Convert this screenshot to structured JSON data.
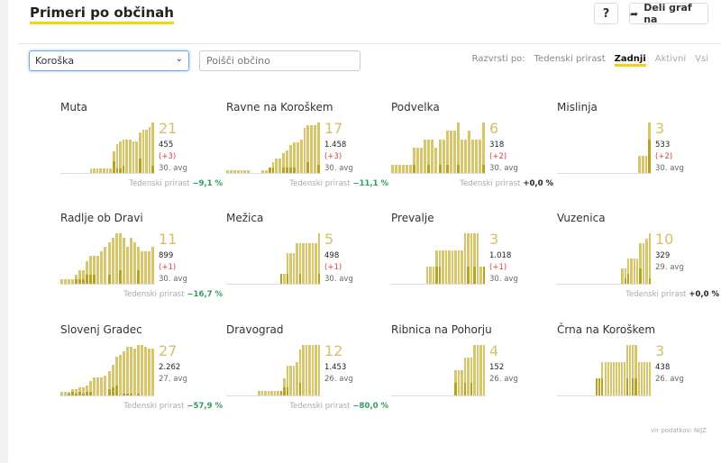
{
  "header": {
    "title": "Primeri po občinah",
    "help_label": "?",
    "share_label": "Deli graf na"
  },
  "filters": {
    "region": "Koroška",
    "search_placeholder": "Poišči občino",
    "sort_label": "Razvrsti po:",
    "sort_options": [
      "Tedenski prirast",
      "Zadnji",
      "Aktivni",
      "Vsi"
    ],
    "sort_active": "Zadnji"
  },
  "growth_label": "Tedenski prirast",
  "colors": {
    "bar": "#d8c66a",
    "bar_dark": "#b9a21f",
    "negative_growth": "#2e9e5b",
    "accent": "#f5d313"
  },
  "cards": [
    {
      "name": "Muta",
      "last": "21",
      "total": "455",
      "change": "(+3)",
      "avg": "30. avg",
      "growth": "−9,1 %",
      "gcolor": "#2e9e5b",
      "bars": [
        0,
        0,
        0,
        0,
        0,
        0,
        0,
        0,
        0,
        2,
        2,
        2,
        2,
        2,
        2,
        2,
        9,
        12,
        13,
        14,
        14,
        14,
        13,
        13,
        17,
        18,
        18,
        19,
        21
      ],
      "dark": [
        0,
        0,
        0,
        0,
        0,
        0,
        0,
        0,
        0,
        0,
        0,
        0,
        0,
        0,
        0,
        0,
        5,
        2,
        2,
        3,
        0,
        0,
        0,
        0,
        6,
        0,
        0,
        0,
        3
      ]
    },
    {
      "name": "Ravne na Koroškem",
      "last": "17",
      "total": "1.458",
      "change": "(+3)",
      "avg": "30. avg",
      "growth": "−11,1 %",
      "gcolor": "#2e9e5b",
      "bars": [
        1,
        1,
        1,
        1,
        1,
        1,
        1,
        0,
        0,
        0,
        1,
        1,
        2,
        4,
        5,
        5,
        7,
        8,
        10,
        11,
        11,
        12,
        16,
        17,
        17,
        17,
        18
      ],
      "dark": [
        0,
        0,
        0,
        0,
        0,
        0,
        0,
        0,
        0,
        0,
        0,
        0,
        2,
        2,
        0,
        0,
        2,
        2,
        2,
        2,
        0,
        0,
        0,
        4,
        0,
        0,
        3
      ]
    },
    {
      "name": "Podvelka",
      "last": "6",
      "total": "318",
      "change": "(+2)",
      "avg": "30. avg",
      "growth": "+0,0 %",
      "gcolor": "#222",
      "bars": [
        1,
        1,
        1,
        1,
        1,
        1,
        3,
        3,
        3,
        4,
        4,
        4,
        3,
        4,
        4,
        5,
        5,
        5,
        6,
        4,
        4,
        5,
        4,
        4,
        4,
        6
      ],
      "dark": [
        0,
        0,
        0,
        0,
        0,
        0,
        1,
        0,
        0,
        0,
        1,
        0,
        0,
        1,
        0,
        1,
        0,
        0,
        1,
        0,
        0,
        0,
        0,
        0,
        0,
        1
      ]
    },
    {
      "name": "Mislinja",
      "last": "3",
      "total": "533",
      "change": "(+2)",
      "avg": "30. avg",
      "growth": "",
      "gcolor": "#222",
      "bars": [
        0,
        0,
        0,
        0,
        0,
        0,
        0,
        0,
        0,
        0,
        0,
        0,
        0,
        0,
        0,
        0,
        0,
        0,
        0,
        0,
        0,
        0,
        0,
        0,
        1,
        1,
        1,
        3
      ],
      "dark": [
        0,
        0,
        0,
        0,
        0,
        0,
        0,
        0,
        0,
        0,
        0,
        0,
        0,
        0,
        0,
        0,
        0,
        0,
        0,
        0,
        0,
        0,
        0,
        0,
        0,
        0,
        0,
        2
      ]
    },
    {
      "name": "Radlje ob Dravi",
      "last": "11",
      "total": "899",
      "change": "(+1)",
      "avg": "30. avg",
      "growth": "−16,7 %",
      "gcolor": "#2e9e5b",
      "bars": [
        1,
        1,
        1,
        1,
        2,
        3,
        3,
        5,
        6,
        6,
        6,
        7,
        8,
        9,
        10,
        11,
        11,
        10,
        8,
        10,
        9,
        8,
        7,
        7,
        7,
        8
      ],
      "dark": [
        0,
        0,
        0,
        0,
        1,
        1,
        1,
        2,
        2,
        2,
        0,
        0,
        0,
        2,
        0,
        0,
        3,
        0,
        0,
        0,
        0,
        3,
        0,
        0,
        0,
        0
      ]
    },
    {
      "name": "Mežica",
      "last": "5",
      "total": "498",
      "change": "(+1)",
      "avg": "30. avg",
      "growth": "",
      "gcolor": "#222",
      "bars": [
        0,
        0,
        0,
        0,
        0,
        0,
        0,
        0,
        0,
        0,
        0,
        0,
        0,
        0,
        0,
        0,
        0,
        1,
        1,
        3,
        3,
        3,
        4,
        4,
        4,
        4,
        4,
        4,
        4,
        5
      ],
      "dark": [
        0,
        0,
        0,
        0,
        0,
        0,
        0,
        0,
        0,
        0,
        0,
        0,
        0,
        0,
        0,
        0,
        0,
        1,
        0,
        1,
        0,
        0,
        0,
        1,
        0,
        0,
        0,
        0,
        0,
        1
      ]
    },
    {
      "name": "Prevalje",
      "last": "3",
      "total": "1.018",
      "change": "(+1)",
      "avg": "30. avg",
      "growth": "",
      "gcolor": "#222",
      "bars": [
        0,
        0,
        0,
        0,
        0,
        0,
        0,
        0,
        0,
        0,
        0,
        1,
        1,
        1,
        2,
        2,
        2,
        2,
        2,
        2,
        2,
        2,
        2,
        3,
        3,
        3,
        3,
        3,
        1,
        1
      ],
      "dark": [
        0,
        0,
        0,
        0,
        0,
        0,
        0,
        0,
        0,
        0,
        0,
        0,
        0,
        0,
        1,
        1,
        0,
        0,
        0,
        0,
        0,
        0,
        0,
        0,
        1,
        0,
        1,
        0,
        0,
        1
      ]
    },
    {
      "name": "Vuzenica",
      "last": "10",
      "total": "329",
      "change": "",
      "avg": "29. avg",
      "growth": "+0,0 %",
      "gcolor": "#222",
      "bars": [
        0,
        0,
        0,
        0,
        0,
        0,
        0,
        0,
        0,
        0,
        0,
        0,
        0,
        0,
        0,
        0,
        0,
        0,
        0,
        0,
        0,
        3,
        3,
        5,
        5,
        5,
        5,
        8,
        8,
        9,
        10
      ],
      "dark": [
        0,
        0,
        0,
        0,
        0,
        0,
        0,
        0,
        0,
        0,
        0,
        0,
        0,
        0,
        0,
        0,
        0,
        0,
        0,
        0,
        0,
        0,
        1,
        2,
        0,
        0,
        0,
        3,
        0,
        0,
        1
      ]
    },
    {
      "name": "Slovenj Gradec",
      "last": "27",
      "total": "2.262",
      "change": "",
      "avg": "27. avg",
      "growth": "−57,9 %",
      "gcolor": "#2e9e5b",
      "bars": [
        2,
        2,
        2,
        3,
        3,
        4,
        4,
        5,
        7,
        9,
        9,
        9,
        10,
        12,
        15,
        19,
        20,
        22,
        24,
        24,
        23,
        25,
        25,
        24,
        23,
        23
      ],
      "dark": [
        0,
        0,
        1,
        2,
        1,
        2,
        1,
        2,
        2,
        0,
        0,
        0,
        0,
        3,
        4,
        5,
        0,
        1,
        1,
        1,
        0,
        1,
        0,
        0,
        0,
        0
      ]
    },
    {
      "name": "Dravograd",
      "last": "12",
      "total": "1.453",
      "change": "",
      "avg": "26. avg",
      "growth": "−80,0 %",
      "gcolor": "#2e9e5b",
      "bars": [
        0,
        0,
        0,
        0,
        0,
        0,
        0,
        0,
        0,
        0,
        1,
        1,
        1,
        1,
        1,
        1,
        1,
        1,
        4,
        7,
        7,
        7,
        8,
        11,
        12,
        12,
        12,
        12,
        12,
        12
      ],
      "dark": [
        0,
        0,
        0,
        0,
        0,
        0,
        0,
        0,
        0,
        0,
        0,
        0,
        0,
        0,
        0,
        0,
        0,
        1,
        2,
        2,
        0,
        0,
        0,
        3,
        0,
        0,
        0,
        0,
        0,
        0
      ]
    },
    {
      "name": "Ribnica na Pohorju",
      "last": "4",
      "total": "152",
      "change": "",
      "avg": "26. avg",
      "growth": "",
      "gcolor": "#222",
      "bars": [
        0,
        0,
        0,
        0,
        0,
        0,
        0,
        0,
        0,
        0,
        0,
        0,
        0,
        0,
        0,
        0,
        0,
        0,
        0,
        0,
        2,
        2,
        2,
        3,
        3,
        3,
        4,
        4,
        4,
        4
      ],
      "dark": [
        0,
        0,
        0,
        0,
        0,
        0,
        0,
        0,
        0,
        0,
        0,
        0,
        0,
        0,
        0,
        0,
        0,
        0,
        0,
        0,
        1,
        0,
        0,
        1,
        0,
        1,
        0,
        0,
        0,
        0
      ]
    },
    {
      "name": "Črna na Koroškem",
      "last": "3",
      "total": "438",
      "change": "",
      "avg": "26. avg",
      "growth": "",
      "gcolor": "#222",
      "bars": [
        0,
        0,
        0,
        0,
        0,
        0,
        0,
        0,
        0,
        0,
        0,
        0,
        0,
        0,
        1,
        1,
        2,
        2,
        2,
        2,
        2,
        2,
        2,
        2,
        2,
        3,
        3,
        3,
        3,
        2,
        2,
        2,
        2,
        2
      ],
      "dark": [
        0,
        0,
        0,
        0,
        0,
        0,
        0,
        0,
        0,
        0,
        0,
        0,
        0,
        0,
        1,
        1,
        1,
        0,
        0,
        0,
        0,
        0,
        0,
        0,
        0,
        1,
        0,
        1,
        1,
        0,
        0,
        0,
        0,
        0
      ]
    }
  ],
  "source": "vir podatkov: NIJZ"
}
